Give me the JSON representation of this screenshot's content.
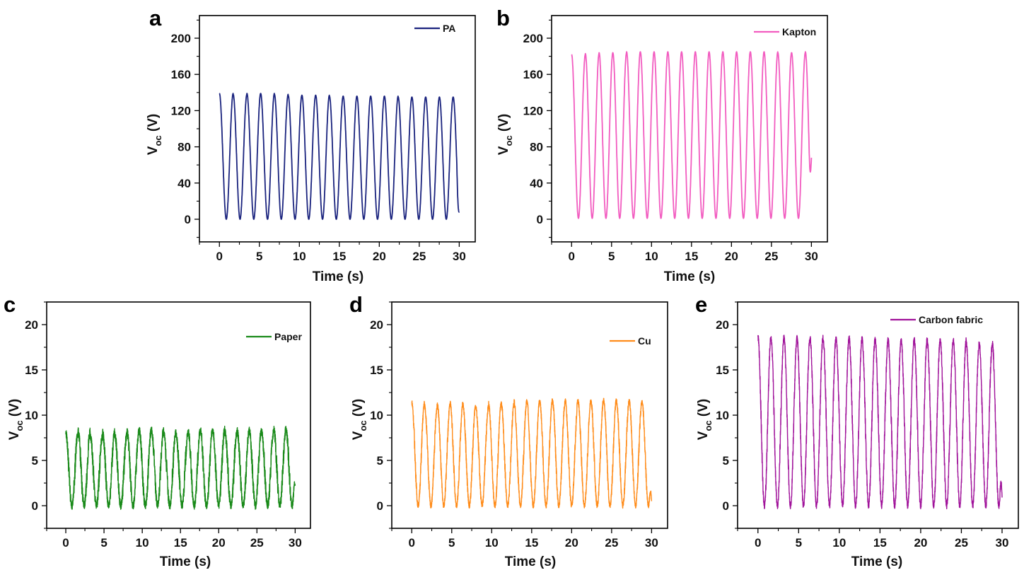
{
  "chart_data": [
    {
      "panel": "a",
      "type": "line",
      "legend": "PA",
      "color": "#1a237e",
      "xlabel": "Time (s)",
      "ylabel_main": "V",
      "ylabel_sub": "oc",
      "ylabel_unit": " (V)",
      "xlim": [
        -2.5,
        32
      ],
      "ylim": [
        -25,
        225
      ],
      "xticks": [
        0,
        5,
        10,
        15,
        20,
        25,
        30
      ],
      "yticks": [
        0,
        40,
        80,
        120,
        160,
        200
      ],
      "series": [
        {
          "name": "PA",
          "period_s": 1.72,
          "min": 0,
          "peaks": [
            139,
            138,
            139,
            139,
            138,
            137,
            137,
            137,
            136,
            136,
            136,
            136,
            136,
            135,
            135,
            135,
            135,
            135
          ],
          "noise": 0,
          "end_value": 8
        }
      ]
    },
    {
      "panel": "b",
      "type": "line",
      "legend": "Kapton",
      "color": "#f25cc0",
      "xlabel": "Time (s)",
      "ylabel_main": "V",
      "ylabel_sub": "oc",
      "ylabel_unit": " (V)",
      "xlim": [
        -2.5,
        32
      ],
      "ylim": [
        -25,
        225
      ],
      "xticks": [
        0,
        5,
        10,
        15,
        20,
        25,
        30
      ],
      "yticks": [
        0,
        40,
        80,
        120,
        160,
        200
      ],
      "series": [
        {
          "name": "Kapton",
          "period_s": 1.72,
          "min": 1,
          "peaks": [
            182,
            183,
            184,
            184,
            185,
            185,
            185,
            185,
            185,
            185,
            185,
            185,
            185,
            185,
            185,
            184,
            184,
            185
          ],
          "noise": 0,
          "end_value": 68
        }
      ]
    },
    {
      "panel": "c",
      "type": "line",
      "legend": "Paper",
      "color": "#1a8a1a",
      "xlabel": "Time (s)",
      "ylabel_main": "V",
      "ylabel_sub": "oc",
      "ylabel_unit": " (V)",
      "xlim": [
        -2.5,
        32
      ],
      "ylim": [
        -2.5,
        22.5
      ],
      "xticks": [
        0,
        5,
        10,
        15,
        20,
        25,
        30
      ],
      "yticks": [
        0,
        5,
        10,
        15,
        20
      ],
      "series": [
        {
          "name": "Paper",
          "period_s": 1.6,
          "min": 0,
          "peaks": [
            8.0,
            8.2,
            7.6,
            8.1,
            7.8,
            8.2,
            8.3,
            8.4,
            8.1,
            8.0,
            8.2,
            8.3,
            8.4,
            8.1,
            8.3,
            8.3,
            8.2,
            8.4,
            8.3
          ],
          "noise": 1.2,
          "end_value": 2.2
        }
      ]
    },
    {
      "panel": "d",
      "type": "line",
      "legend": "Cu",
      "color": "#ff8c1a",
      "xlabel": "Time (s)",
      "ylabel_main": "V",
      "ylabel_sub": "oc",
      "ylabel_unit": " (V)",
      "xlim": [
        -2.5,
        32
      ],
      "ylim": [
        -2.5,
        22.5
      ],
      "xticks": [
        0,
        5,
        10,
        15,
        20,
        25,
        30
      ],
      "yticks": [
        0,
        5,
        10,
        15,
        20
      ],
      "series": [
        {
          "name": "Cu",
          "period_s": 1.6,
          "min": 0,
          "peaks": [
            11.4,
            11.0,
            11.1,
            11.3,
            11.1,
            10.9,
            11.3,
            11.2,
            11.5,
            11.5,
            11.6,
            11.5,
            11.6,
            11.5,
            11.7,
            11.6,
            11.5,
            11.5,
            11.4
          ],
          "noise": 0.8,
          "end_value": 0.5
        }
      ]
    },
    {
      "panel": "e",
      "type": "line",
      "legend": "Carbon fabric",
      "color": "#a0129a",
      "xlabel": "Time (s)",
      "ylabel_main": "V",
      "ylabel_sub": "oc",
      "ylabel_unit": " (V)",
      "xlim": [
        -2.5,
        32
      ],
      "ylim": [
        -2.5,
        22.5
      ],
      "xticks": [
        0,
        5,
        10,
        15,
        20,
        25,
        30
      ],
      "yticks": [
        0,
        5,
        10,
        15,
        20
      ],
      "series": [
        {
          "name": "Carbon fabric",
          "period_s": 1.6,
          "min": 0,
          "peaks": [
            18.6,
            18.5,
            18.5,
            18.5,
            18.6,
            18.5,
            18.4,
            18.5,
            18.4,
            18.3,
            18.2,
            18.3,
            18.4,
            18.2,
            18.2,
            18.3,
            17.9,
            17.8,
            17.9
          ],
          "noise": 1.0,
          "end_value": 0.9
        }
      ]
    }
  ]
}
